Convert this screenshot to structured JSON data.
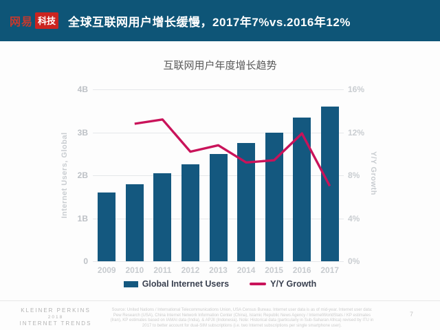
{
  "header": {
    "logo_brand": "网易",
    "logo_suffix": "科技",
    "title": "全球互联网用户增长缓慢，2017年7%vs.2016年12%",
    "bg_color": "#0E5577",
    "logo_red": "#CB2420"
  },
  "chart_data": {
    "type": "bar",
    "title": "互联网用户年度增长趋势",
    "categories": [
      "2009",
      "2010",
      "2011",
      "2012",
      "2013",
      "2014",
      "2015",
      "2016",
      "2017"
    ],
    "series": [
      {
        "name": "Global Internet Users",
        "type": "bar",
        "axis": "left",
        "unit": "billions",
        "color": "#14587F",
        "values": [
          1.6,
          1.8,
          2.05,
          2.25,
          2.5,
          2.75,
          3.0,
          3.35,
          3.6
        ]
      },
      {
        "name": "Y/Y Growth",
        "type": "line",
        "axis": "right",
        "unit": "percent",
        "color": "#C9135A",
        "values": [
          null,
          12.8,
          13.2,
          10.2,
          10.8,
          9.2,
          9.4,
          11.9,
          7.0
        ]
      }
    ],
    "left_axis": {
      "label": "Internet Users, Global",
      "range": [
        0,
        4
      ],
      "ticks_top_to_bottom": [
        "4B",
        "3B",
        "2B",
        "1B",
        "0"
      ]
    },
    "right_axis": {
      "label": "Y/Y Growth",
      "range": [
        0,
        16
      ],
      "ticks_top_to_bottom": [
        "16%",
        "12%",
        "8%",
        "4%",
        "0%"
      ]
    },
    "grid": true,
    "legend_position": "bottom"
  },
  "footer": {
    "brand_line1": "KLEINER PERKINS",
    "brand_line2": "2018",
    "brand_line3": "INTERNET TRENDS",
    "source": "Source: United Nations / International Telecommunications Union, USA Census Bureau. Internet user data is as of mid-year. Internet user data: Pew Research (USA), China Internet Network Information Center (China), Islamic Republic News Agency / InternetWorldStats / KP estimates (Iran), KP estimates based on IAMAI data (India), & APJII (Indonesia). Note: Historical data (particularly in Sub-Saharan Africa) revised by ITU in 2017 to better account for dual-SIM subscriptions (i.e. two Internet subscriptions per single smartphone user).",
    "page_number": "7"
  }
}
